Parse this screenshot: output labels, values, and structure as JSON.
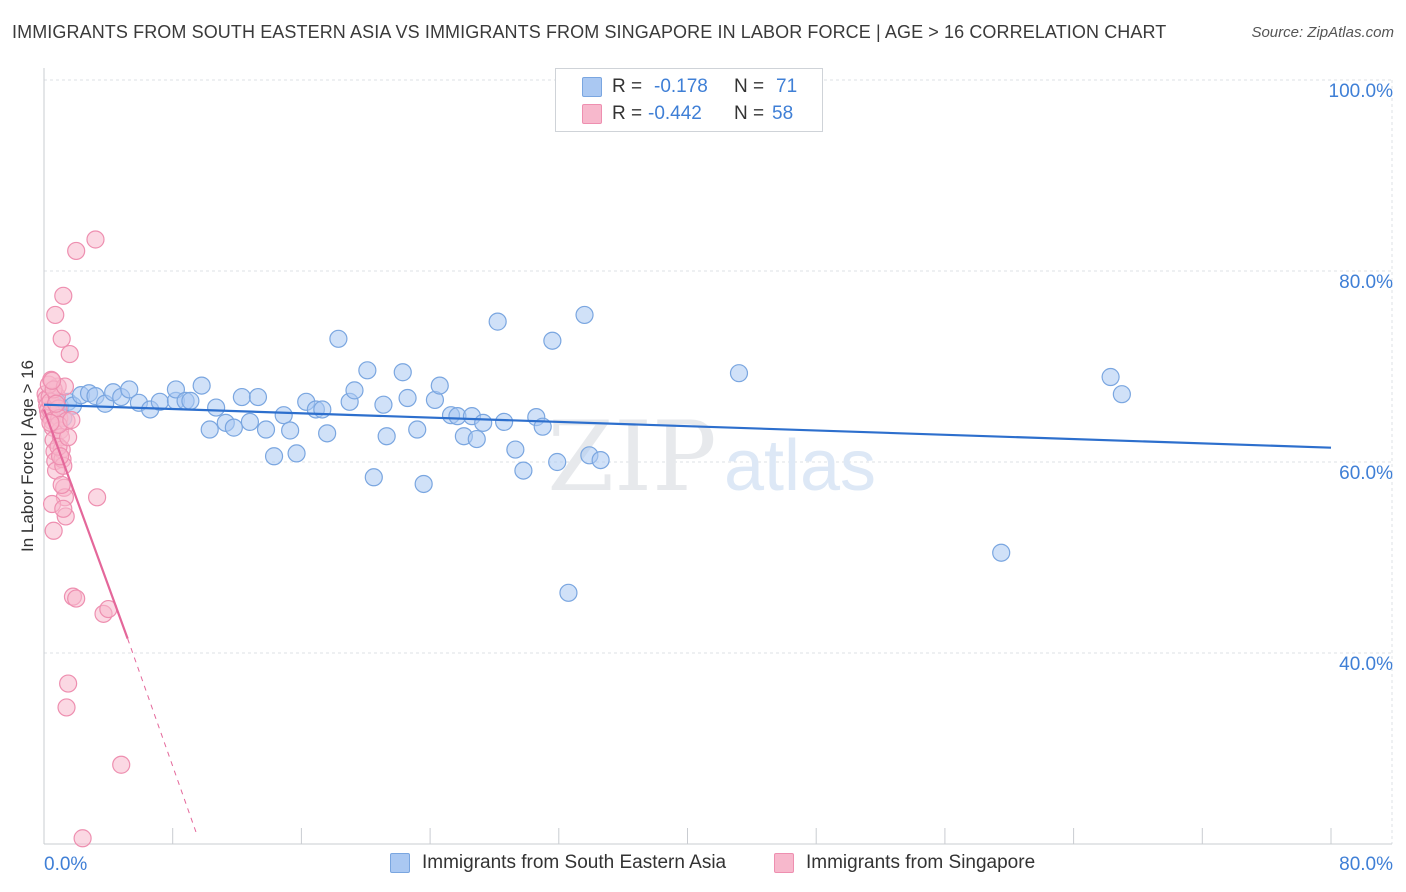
{
  "header": {
    "title": "IMMIGRANTS FROM SOUTH EASTERN ASIA VS IMMIGRANTS FROM SINGAPORE IN LABOR FORCE | AGE > 16 CORRELATION CHART",
    "source": "Source: ZipAtlas.com"
  },
  "watermark": {
    "zip": "ZIP",
    "atlas": "atlas"
  },
  "legend": {
    "rows": [
      {
        "r_label": "R =",
        "r_value": "-0.178",
        "n_label": "N =",
        "n_value": "71"
      },
      {
        "r_label": "R =",
        "r_value": "-0.442",
        "n_label": "N =",
        "n_value": "58"
      }
    ]
  },
  "bottom_legend": {
    "series1": "Immigrants from South Eastern Asia",
    "series2": "Immigrants from Singapore"
  },
  "colors": {
    "blue_fill": "#aac8f2",
    "blue_stroke": "#7aa6e0",
    "blue_line": "#2d6fcd",
    "pink_fill": "#f7b8cc",
    "pink_stroke": "#ee8fb0",
    "pink_line": "#e4679a",
    "tick_text": "#3f7fd6",
    "grid": "#dde1e6"
  },
  "chart_data": {
    "type": "scatter",
    "title": "IMMIGRANTS FROM SOUTH EASTERN ASIA VS IMMIGRANTS FROM SINGAPORE IN LABOR FORCE | AGE > 16 CORRELATION CHART",
    "xlabel": "",
    "ylabel": "In Labor Force | Age > 16",
    "xlim": [
      0,
      80
    ],
    "ylim": [
      20,
      100
    ],
    "x_tick_labels": [
      "0.0%",
      "80.0%"
    ],
    "y_ticks": [
      40,
      60,
      80,
      100
    ],
    "y_tick_labels": [
      "40.0%",
      "60.0%",
      "80.0%",
      "100.0%"
    ],
    "grid": true,
    "legend_position": "top-center",
    "series": [
      {
        "name": "Immigrants from South Eastern Asia",
        "R": -0.178,
        "N": 71,
        "trend": {
          "x": [
            0,
            80
          ],
          "y": [
            66.0,
            61.5
          ]
        },
        "points": [
          [
            1.0,
            65.8
          ],
          [
            1.5,
            66.3
          ],
          [
            1.8,
            65.9
          ],
          [
            2.3,
            67.0
          ],
          [
            2.8,
            67.2
          ],
          [
            3.2,
            66.9
          ],
          [
            3.8,
            66.1
          ],
          [
            4.3,
            67.3
          ],
          [
            4.8,
            66.8
          ],
          [
            5.3,
            67.6
          ],
          [
            5.9,
            66.2
          ],
          [
            6.6,
            65.5
          ],
          [
            7.2,
            66.3
          ],
          [
            8.2,
            66.4
          ],
          [
            8.2,
            67.6
          ],
          [
            8.8,
            66.4
          ],
          [
            9.1,
            66.4
          ],
          [
            9.8,
            68.0
          ],
          [
            10.3,
            63.4
          ],
          [
            10.7,
            65.7
          ],
          [
            11.3,
            64.1
          ],
          [
            11.8,
            63.6
          ],
          [
            12.3,
            66.8
          ],
          [
            12.8,
            64.2
          ],
          [
            13.3,
            66.8
          ],
          [
            13.8,
            63.4
          ],
          [
            14.3,
            60.6
          ],
          [
            14.9,
            64.9
          ],
          [
            15.3,
            63.3
          ],
          [
            15.7,
            60.9
          ],
          [
            16.3,
            66.3
          ],
          [
            16.9,
            65.5
          ],
          [
            17.3,
            65.5
          ],
          [
            17.6,
            63.0
          ],
          [
            18.3,
            72.9
          ],
          [
            19.0,
            66.3
          ],
          [
            19.3,
            67.5
          ],
          [
            20.1,
            69.6
          ],
          [
            20.5,
            58.4
          ],
          [
            21.1,
            66.0
          ],
          [
            21.3,
            62.7
          ],
          [
            22.3,
            69.4
          ],
          [
            22.6,
            66.7
          ],
          [
            23.2,
            63.4
          ],
          [
            23.6,
            57.7
          ],
          [
            24.3,
            66.5
          ],
          [
            24.6,
            68.0
          ],
          [
            25.3,
            64.9
          ],
          [
            25.7,
            64.8
          ],
          [
            26.1,
            62.7
          ],
          [
            26.6,
            64.8
          ],
          [
            26.9,
            62.4
          ],
          [
            27.3,
            64.1
          ],
          [
            28.2,
            74.7
          ],
          [
            28.6,
            64.2
          ],
          [
            29.3,
            61.3
          ],
          [
            29.8,
            59.1
          ],
          [
            30.6,
            64.7
          ],
          [
            31.0,
            63.7
          ],
          [
            31.6,
            72.7
          ],
          [
            31.9,
            60.0
          ],
          [
            32.6,
            46.3
          ],
          [
            33.6,
            75.4
          ],
          [
            33.9,
            60.7
          ],
          [
            34.6,
            60.2
          ],
          [
            43.2,
            69.3
          ],
          [
            59.5,
            50.5
          ],
          [
            66.3,
            68.9
          ],
          [
            67.0,
            67.1
          ],
          [
            0.8,
            66.3
          ],
          [
            1.2,
            64.6
          ]
        ]
      },
      {
        "name": "Immigrants from Singapore",
        "R": -0.442,
        "N": 58,
        "trend": {
          "x": [
            0,
            5.2
          ],
          "y": [
            65.5,
            41.5
          ]
        },
        "trend_dashed": {
          "x": [
            5.2,
            9.5
          ],
          "y": [
            41.5,
            21.0
          ]
        },
        "points": [
          [
            0.1,
            67.1
          ],
          [
            0.15,
            66.6
          ],
          [
            0.2,
            65.9
          ],
          [
            0.25,
            65.4
          ],
          [
            0.3,
            64.9
          ],
          [
            0.35,
            66.8
          ],
          [
            0.4,
            66.3
          ],
          [
            0.45,
            65.3
          ],
          [
            0.5,
            64.3
          ],
          [
            0.55,
            63.6
          ],
          [
            0.6,
            62.3
          ],
          [
            0.65,
            61.1
          ],
          [
            0.7,
            60.1
          ],
          [
            0.75,
            59.1
          ],
          [
            0.8,
            66.9
          ],
          [
            0.85,
            67.9
          ],
          [
            0.9,
            65.6
          ],
          [
            0.95,
            64.6
          ],
          [
            1.0,
            63.3
          ],
          [
            1.05,
            62.6
          ],
          [
            1.1,
            61.3
          ],
          [
            1.15,
            60.3
          ],
          [
            1.2,
            59.6
          ],
          [
            1.25,
            57.3
          ],
          [
            1.3,
            56.3
          ],
          [
            1.35,
            54.3
          ],
          [
            0.5,
            55.6
          ],
          [
            0.6,
            52.8
          ],
          [
            0.3,
            68.1
          ],
          [
            0.45,
            68.6
          ],
          [
            0.6,
            67.6
          ],
          [
            0.75,
            66.1
          ],
          [
            0.9,
            61.6
          ],
          [
            1.0,
            60.6
          ],
          [
            1.1,
            57.6
          ],
          [
            1.2,
            55.1
          ],
          [
            1.5,
            62.6
          ],
          [
            1.4,
            64.3
          ],
          [
            1.6,
            71.3
          ],
          [
            1.1,
            72.9
          ],
          [
            0.7,
            75.4
          ],
          [
            1.2,
            77.4
          ],
          [
            1.3,
            67.9
          ],
          [
            2.0,
            82.1
          ],
          [
            3.2,
            83.3
          ],
          [
            3.3,
            56.3
          ],
          [
            1.8,
            45.9
          ],
          [
            2.0,
            45.7
          ],
          [
            3.7,
            44.1
          ],
          [
            4.0,
            44.6
          ],
          [
            1.5,
            36.8
          ],
          [
            1.4,
            34.3
          ],
          [
            4.8,
            28.3
          ],
          [
            2.4,
            20.6
          ],
          [
            0.9,
            63.9
          ],
          [
            0.5,
            68.5
          ],
          [
            1.7,
            64.4
          ],
          [
            0.4,
            64.1
          ]
        ]
      }
    ]
  }
}
